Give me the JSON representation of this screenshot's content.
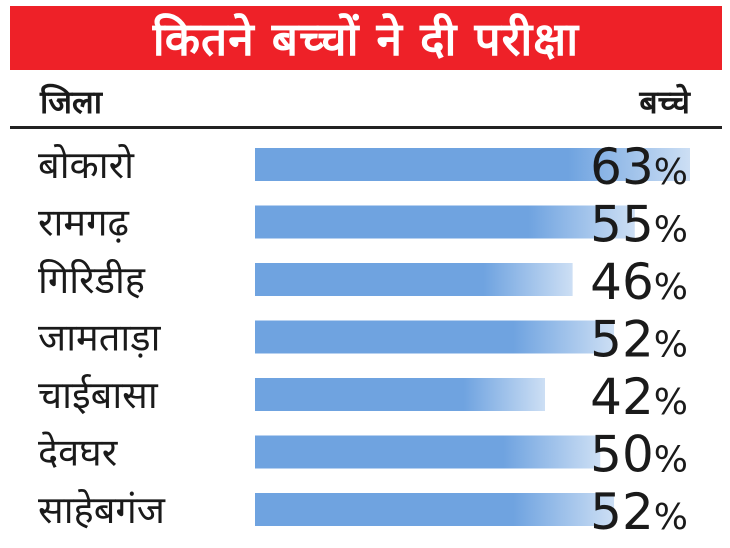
{
  "title": "कितने बच्चों ने दी परीक्षा",
  "colors": {
    "title_background": "#ee2128",
    "title_text": "#ffffff",
    "bar": "#6fa3e0"
  },
  "chart_data": {
    "type": "bar",
    "orientation": "horizontal",
    "title": "कितने बच्चों ने दी परीक्षा",
    "xlabel": "बच्चे",
    "ylabel": "जिला",
    "unit": "%",
    "categories": [
      "बोकारो",
      "रामगढ़",
      "गिरिडीह",
      "जामताड़ा",
      "चाईबासा",
      "देवघर",
      "साहेबगंज"
    ],
    "values": [
      63,
      55,
      46,
      52,
      42,
      50,
      52
    ],
    "value_labels": [
      "63",
      "55",
      "46",
      "52",
      "42",
      "50",
      "52"
    ],
    "grid": false,
    "legend": "none"
  }
}
